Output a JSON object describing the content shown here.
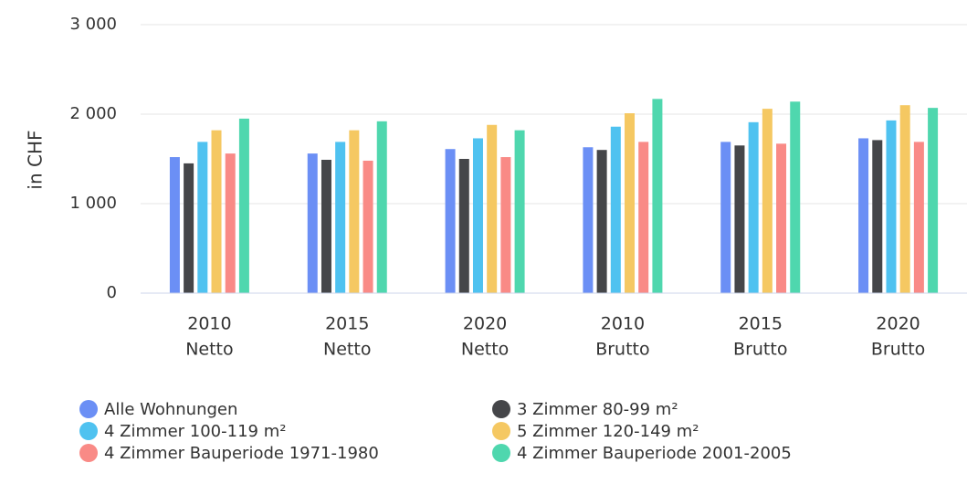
{
  "chart_data": {
    "type": "bar",
    "y_label": "in CHF",
    "categories": [
      [
        "2010",
        "Netto"
      ],
      [
        "2015",
        "Netto"
      ],
      [
        "2020",
        "Netto"
      ],
      [
        "2010",
        "Brutto"
      ],
      [
        "2015",
        "Brutto"
      ],
      [
        "2020",
        "Brutto"
      ]
    ],
    "series": [
      {
        "name": "Alle Wohnungen",
        "color": "#6b8ff5",
        "values": [
          1520,
          1560,
          1610,
          1630,
          1690,
          1730
        ]
      },
      {
        "name": "3 Zimmer 80-99 m²",
        "color": "#454649",
        "values": [
          1450,
          1490,
          1500,
          1600,
          1650,
          1710
        ]
      },
      {
        "name": "4 Zimmer 100-119 m²",
        "color": "#4fc2f0",
        "values": [
          1690,
          1690,
          1730,
          1860,
          1910,
          1930
        ]
      },
      {
        "name": "5 Zimmer 120-149 m²",
        "color": "#f5c862",
        "values": [
          1820,
          1820,
          1880,
          2010,
          2060,
          2100
        ]
      },
      {
        "name": "4 Zimmer Bauperiode 1971-1980",
        "color": "#f98a86",
        "values": [
          1560,
          1480,
          1520,
          1690,
          1670,
          1690
        ]
      },
      {
        "name": "4 Zimmer Bauperiode 2001-2005",
        "color": "#4fd7ae",
        "values": [
          1950,
          1920,
          1820,
          2170,
          2140,
          2070
        ]
      }
    ],
    "ylim": [
      0,
      3000
    ],
    "yticks": [
      0,
      {
        "value": 1000,
        "label": "1 000"
      },
      {
        "value": 2000,
        "label": "2 000"
      },
      {
        "value": 3000,
        "label": "3 000"
      }
    ],
    "grid": true
  }
}
